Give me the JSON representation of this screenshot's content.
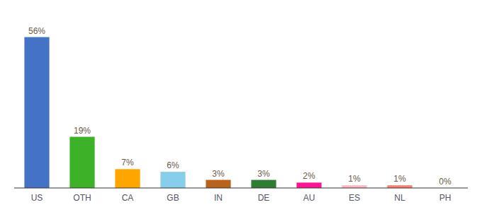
{
  "chart_data": {
    "type": "bar",
    "categories": [
      "US",
      "OTH",
      "CA",
      "GB",
      "IN",
      "DE",
      "AU",
      "ES",
      "NL",
      "PH"
    ],
    "values": [
      56,
      19,
      7,
      6,
      3,
      3,
      2,
      1,
      1,
      0
    ],
    "value_labels": [
      "56%",
      "19%",
      "7%",
      "6%",
      "3%",
      "3%",
      "2%",
      "1%",
      "1%",
      "0%"
    ],
    "data_labels": true,
    "colors": [
      "#4472C4",
      "#3DB228",
      "#FFA500",
      "#87CEEB",
      "#B8621B",
      "#2E7D32",
      "#FF1493",
      "#FFB6C1",
      "#FA8072",
      "#E8C8A8"
    ],
    "ylim": [
      0,
      64
    ],
    "grid": false,
    "tick_labels": "x"
  }
}
